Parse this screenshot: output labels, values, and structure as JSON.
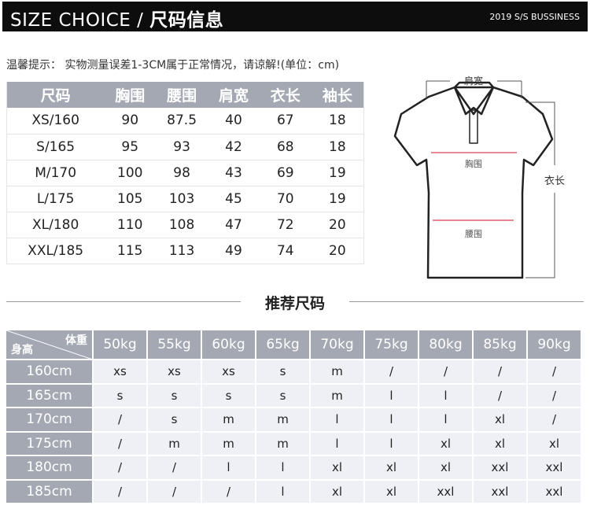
{
  "header": {
    "title_en": "SIZE CHOICE / ",
    "title_cn": "尺码信息",
    "subtitle": "2019 S/S BUSSINESS"
  },
  "note": "温馨提示： 实物测量误差1-3CM属于正常情况，请谅解!(单位：cm)",
  "size_table": {
    "columns": [
      "尺码",
      "胸围",
      "腰围",
      "肩宽",
      "衣长",
      "袖长"
    ],
    "rows": [
      [
        "XS/160",
        "90",
        "87.5",
        "40",
        "67",
        "18"
      ],
      [
        "S/165",
        "95",
        "93",
        "42",
        "68",
        "18"
      ],
      [
        "M/170",
        "100",
        "98",
        "43",
        "69",
        "19"
      ],
      [
        "L/175",
        "105",
        "103",
        "45",
        "70",
        "19"
      ],
      [
        "XL/180",
        "110",
        "108",
        "47",
        "72",
        "20"
      ],
      [
        "XXL/185",
        "115",
        "113",
        "49",
        "74",
        "20"
      ]
    ]
  },
  "diagram": {
    "shoulder": "肩宽",
    "chest": "胸围",
    "waist": "腰围",
    "length": "衣长",
    "accent": "#e06070"
  },
  "recommend": {
    "title": "推荐尺码",
    "corner_weight": "体重",
    "corner_height": "身高",
    "weights": [
      "50kg",
      "55kg",
      "60kg",
      "65kg",
      "70kg",
      "75kg",
      "80kg",
      "85kg",
      "90kg"
    ],
    "rows": [
      {
        "height": "160cm",
        "sizes": [
          "xs",
          "xs",
          "xs",
          "s",
          "m",
          "/",
          "/",
          "/",
          "/"
        ]
      },
      {
        "height": "165cm",
        "sizes": [
          "s",
          "s",
          "s",
          "s",
          "m",
          "l",
          "l",
          "/",
          "/"
        ]
      },
      {
        "height": "170cm",
        "sizes": [
          "/",
          "s",
          "m",
          "m",
          "l",
          "l",
          "l",
          "xl",
          "/"
        ]
      },
      {
        "height": "175cm",
        "sizes": [
          "/",
          "m",
          "m",
          "m",
          "l",
          "l",
          "xl",
          "xl",
          "xl"
        ]
      },
      {
        "height": "180cm",
        "sizes": [
          "/",
          "/",
          "l",
          "l",
          "xl",
          "xl",
          "xl",
          "xxl",
          "xxl"
        ]
      },
      {
        "height": "185cm",
        "sizes": [
          "/",
          "/",
          "/",
          "l",
          "xl",
          "xl",
          "xxl",
          "xxl",
          "xxl"
        ]
      }
    ]
  },
  "colors": {
    "header_bg": "#0d0d0d",
    "table_header": "#a3a8b3",
    "table_body": "#eef0f5"
  }
}
